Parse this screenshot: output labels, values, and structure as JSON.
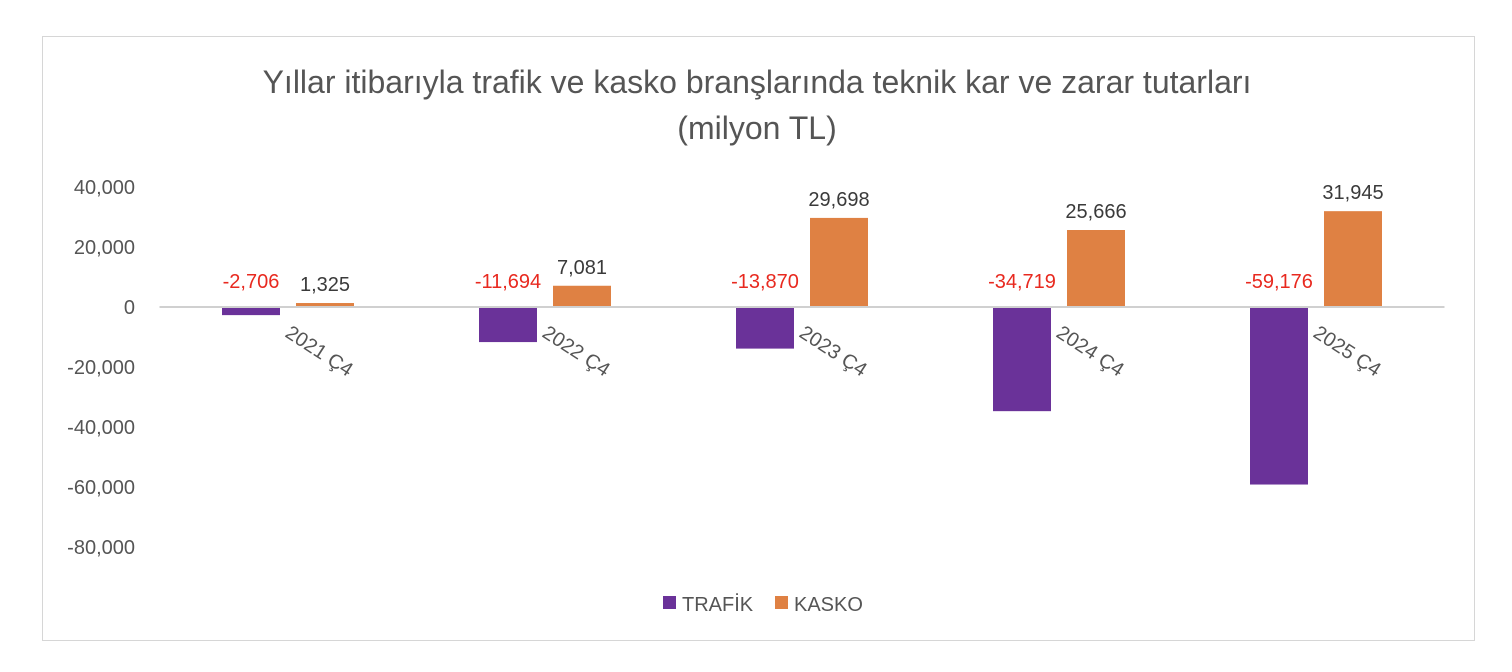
{
  "chart_data": {
    "type": "bar",
    "title": [
      "Yıllar itibarıyla trafik ve kasko branşlarında teknik kar ve zarar tutarları",
      "(milyon TL)"
    ],
    "categories": [
      "2021 Ç4",
      "2022 Ç4",
      "2023 Ç4",
      "2024 Ç4",
      "2025 Ç4"
    ],
    "series": [
      {
        "name": "TRAFİK",
        "values": [
          -2706,
          -11694,
          -13870,
          -34719,
          -59176
        ],
        "labels": [
          "-2,706",
          "-11,694",
          "-13,870",
          "-34,719",
          "-59,176"
        ],
        "color": "#6a3299",
        "label_color": "#e8291f"
      },
      {
        "name": "KASKO",
        "values": [
          1325,
          7081,
          29698,
          25666,
          31945
        ],
        "labels": [
          "1,325",
          "7,081",
          "29,698",
          "25,666",
          "31,945"
        ],
        "color": "#df8143",
        "label_color": "#3a3a3a"
      }
    ],
    "yticks": [
      40000,
      20000,
      0,
      -20000,
      -40000,
      -60000,
      -80000
    ],
    "ytick_labels": [
      "40,000",
      "20,000",
      "0",
      "-20,000",
      "-40,000",
      "-60,000",
      "-80,000"
    ],
    "ylim": [
      -80000,
      40000
    ],
    "xlabel": "",
    "ylabel": "",
    "grid": false,
    "legend": "bottom"
  }
}
